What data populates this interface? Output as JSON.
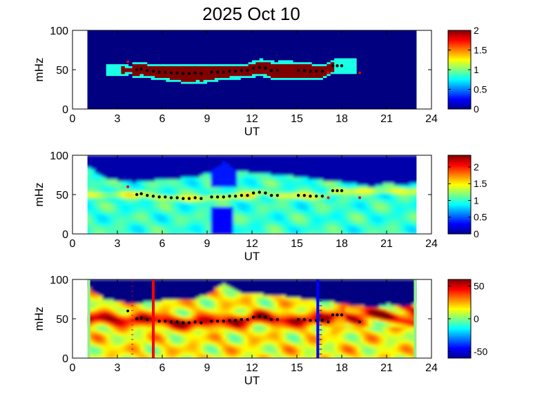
{
  "title": "2025 Oct 10",
  "chart_data": [
    {
      "type": "heatmap",
      "xlabel": "UT",
      "ylabel": "mHz",
      "xlim": [
        0,
        24
      ],
      "ylim": [
        0,
        100
      ],
      "xticks": [
        "0",
        "3",
        "6",
        "9",
        "12",
        "15",
        "18",
        "21",
        "24"
      ],
      "yticks": [
        "0",
        "50",
        "100"
      ],
      "data_xrange": [
        1,
        23
      ],
      "clim": [
        0,
        2
      ],
      "colorbar_ticks": [
        "0",
        "0.5",
        "1",
        "1.5",
        "2"
      ],
      "colorbar_values": [
        0,
        0.5,
        1,
        1.5,
        2
      ],
      "model": {
        "kind": "band",
        "band_value": 2,
        "background": 0,
        "band_halfwidth": 8,
        "band_start": 3,
        "band_end": 17.5
      }
    },
    {
      "type": "heatmap",
      "xlabel": "UT",
      "ylabel": "mHz",
      "xlim": [
        0,
        24
      ],
      "ylim": [
        0,
        100
      ],
      "xticks": [
        "0",
        "3",
        "6",
        "9",
        "12",
        "15",
        "18",
        "21",
        "24"
      ],
      "yticks": [
        "0",
        "50",
        "100"
      ],
      "data_xrange": [
        1,
        23
      ],
      "clim": [
        0,
        2.35
      ],
      "colorbar_ticks": [
        "0",
        "0.5",
        "1",
        "1.5",
        "2"
      ],
      "colorbar_values": [
        0,
        0.5,
        1,
        1.5,
        2
      ],
      "model": {
        "kind": "ratio",
        "band_value": 1.5,
        "background": 1.0,
        "top_value": 0.1,
        "low_patch": {
          "x": [
            9,
            10.6
          ],
          "y": [
            0,
            35
          ],
          "value": 0.3
        }
      }
    },
    {
      "type": "heatmap",
      "xlabel": "UT",
      "ylabel": "mHz",
      "xlim": [
        0,
        24
      ],
      "ylim": [
        0,
        100
      ],
      "xticks": [
        "0",
        "3",
        "6",
        "9",
        "12",
        "15",
        "18",
        "21",
        "24"
      ],
      "yticks": [
        "0",
        "50",
        "100"
      ],
      "data_xrange": [
        1,
        23
      ],
      "clim": [
        -60,
        60
      ],
      "colorbar_ticks": [
        "-50",
        "0",
        "50"
      ],
      "colorbar_values": [
        -50,
        0,
        50
      ],
      "model": {
        "kind": "phase",
        "band_value": 55,
        "background": 15,
        "top_value": -60
      },
      "vertical_markers": [
        {
          "x": 5.4,
          "color": "#ff0000"
        },
        {
          "x": 16.4,
          "color": "#0000ff"
        }
      ]
    }
  ],
  "upper_edge_mHz": {
    "x": [
      1,
      2,
      3,
      4,
      6,
      8,
      9,
      10,
      11,
      12,
      14,
      16,
      17,
      18,
      20,
      21,
      22,
      23
    ],
    "y": [
      85,
      72,
      68,
      66,
      70,
      72,
      78,
      92,
      80,
      78,
      75,
      70,
      68,
      66,
      60,
      65,
      62,
      66
    ]
  },
  "peak_track": {
    "x": [
      4.3,
      4.6,
      5.0,
      5.4,
      5.8,
      6.2,
      6.6,
      7.0,
      7.4,
      7.8,
      8.2,
      8.6,
      9.3,
      9.7,
      10.1,
      10.5,
      10.9,
      11.3,
      11.7,
      12.1,
      12.5,
      12.9,
      13.3,
      13.7,
      15.1,
      15.5,
      15.9,
      16.3,
      16.7,
      17.4,
      17.7,
      18.0
    ],
    "y": [
      50,
      51,
      49,
      48,
      47,
      47,
      46,
      46,
      45,
      45,
      46,
      45,
      47,
      47,
      47,
      48,
      48,
      49,
      49,
      52,
      53,
      52,
      49,
      49,
      49,
      49,
      48,
      48,
      48,
      55,
      55,
      55
    ]
  },
  "red_points": {
    "x": [
      3.7,
      17.1,
      19.2
    ],
    "y": [
      60,
      46,
      46
    ]
  }
}
